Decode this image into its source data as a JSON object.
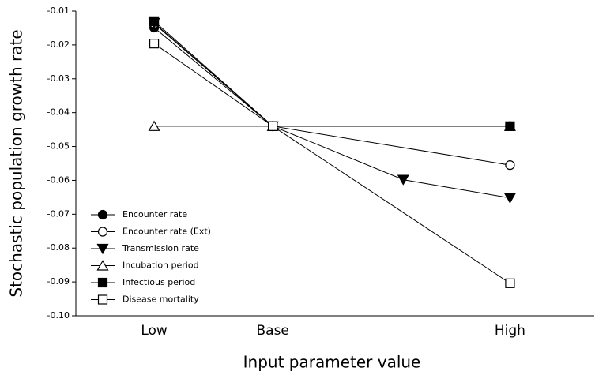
{
  "chart_data": {
    "type": "line",
    "x_label": "Input parameter value",
    "y_label": "Stochastic population growth rate",
    "xlim": [
      -1.66,
      2.71
    ],
    "xticks": [
      {
        "value": -1,
        "label": "Low"
      },
      {
        "value": 0,
        "label": "Base"
      },
      {
        "value": 2,
        "label": "High"
      }
    ],
    "ylim": [
      -0.1,
      -0.01
    ],
    "yticks": [
      -0.01,
      -0.02,
      -0.03,
      -0.04,
      -0.05,
      -0.06,
      -0.07,
      -0.08,
      -0.09,
      {
        "value": -0.1,
        "label": "-0.10"
      }
    ],
    "legend": "lower-left",
    "series": [
      {
        "name": "Encounter rate",
        "color": "#000000",
        "marker": "circle",
        "filled": true,
        "x": [
          -1,
          0,
          2
        ],
        "values": [
          -0.0149,
          -0.044,
          -0.044
        ]
      },
      {
        "name": "Encounter rate (Ext)",
        "color": "#000000",
        "marker": "circle",
        "filled": false,
        "x": [
          -1,
          0,
          2
        ],
        "values": [
          -0.0137,
          -0.044,
          -0.0555
        ]
      },
      {
        "name": "Transmission rate",
        "color": "#000000",
        "marker": "triangle-down",
        "filled": true,
        "x": [
          -1,
          0,
          1.1,
          2
        ],
        "values": [
          -0.0135,
          -0.044,
          -0.0598,
          -0.0652
        ]
      },
      {
        "name": "Incubation period",
        "color": "#000000",
        "marker": "triangle-up",
        "filled": false,
        "x": [
          -1,
          0,
          2
        ],
        "values": [
          -0.044,
          -0.044,
          -0.044
        ]
      },
      {
        "name": "Infectious period",
        "color": "#000000",
        "marker": "square",
        "filled": true,
        "x": [
          -1,
          0,
          2
        ],
        "values": [
          -0.013,
          -0.044,
          -0.044
        ]
      },
      {
        "name": "Disease mortality",
        "color": "#000000",
        "marker": "square",
        "filled": false,
        "x": [
          -1,
          0,
          2
        ],
        "values": [
          -0.0196,
          -0.044,
          -0.0904
        ]
      }
    ]
  }
}
